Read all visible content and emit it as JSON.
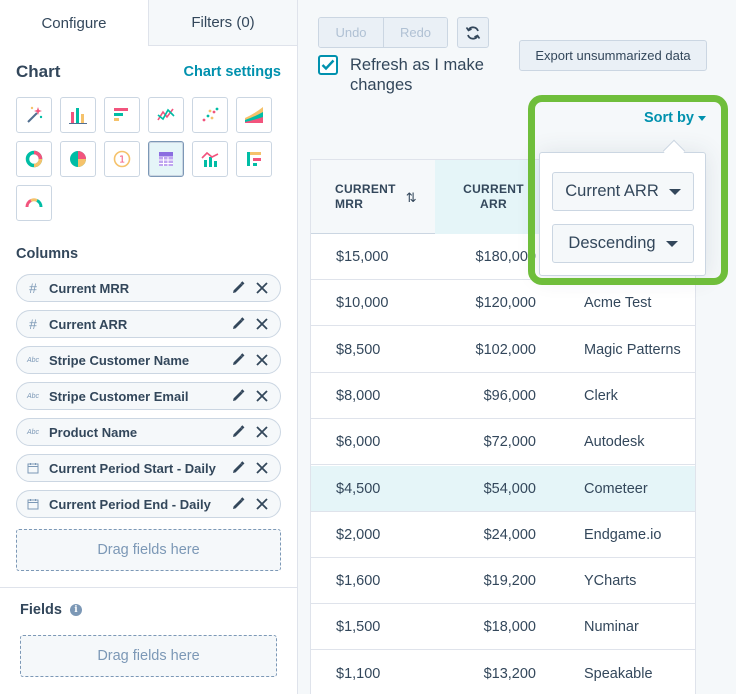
{
  "tabs": [
    {
      "label": "Configure",
      "active": true
    },
    {
      "label": "Filters (0)",
      "active": false
    }
  ],
  "chart": {
    "title": "Chart",
    "settings_label": "Chart settings",
    "types": [
      {
        "icon": "magic-wand-icon",
        "selected": false
      },
      {
        "icon": "bar-chart-icon",
        "selected": false
      },
      {
        "icon": "horizontal-bar-chart-icon",
        "selected": false
      },
      {
        "icon": "line-chart-icon",
        "selected": false
      },
      {
        "icon": "scatter-chart-icon",
        "selected": false
      },
      {
        "icon": "area-chart-icon",
        "selected": false
      },
      {
        "icon": "donut-chart-icon",
        "selected": false
      },
      {
        "icon": "pie-chart-icon",
        "selected": false
      },
      {
        "icon": "kpi-icon",
        "selected": false
      },
      {
        "icon": "table-icon",
        "selected": true
      },
      {
        "icon": "combo-chart-icon",
        "selected": false
      },
      {
        "icon": "pivot-table-icon",
        "selected": false
      },
      {
        "icon": "gauge-icon",
        "selected": false
      }
    ],
    "kpi_glyph": "1"
  },
  "columns": {
    "title": "Columns",
    "items": [
      {
        "type_glyph": "#",
        "type": "number",
        "name": "Current MRR"
      },
      {
        "type_glyph": "#",
        "type": "number",
        "name": "Current ARR"
      },
      {
        "type_glyph": "Abc",
        "type": "text",
        "name": "Stripe Customer Name"
      },
      {
        "type_glyph": "Abc",
        "type": "text",
        "name": "Stripe Customer Email"
      },
      {
        "type_glyph": "Abc",
        "type": "text",
        "name": "Product Name"
      },
      {
        "type_glyph": "",
        "type": "date",
        "name": "Current Period Start - Daily"
      },
      {
        "type_glyph": "",
        "type": "date",
        "name": "Current Period End - Daily"
      }
    ],
    "drop_label": "Drag fields here"
  },
  "fields": {
    "title": "Fields",
    "info_glyph": "i",
    "drop_label": "Drag fields here"
  },
  "toolbar": {
    "undo_label": "Undo",
    "redo_label": "Redo",
    "export_label": "Export unsummarized data",
    "refresh_checkbox_label": "Refresh as I make changes",
    "refresh_checked": true
  },
  "table": {
    "headers": [
      {
        "line1": "CURRENT",
        "line2": "MRR",
        "sort_glyph": "⇅"
      },
      {
        "line1": "CURRENT",
        "line2": "ARR"
      }
    ],
    "rows": [
      {
        "mrr": "$15,000",
        "arr": "$180,000",
        "name": ""
      },
      {
        "mrr": "$10,000",
        "arr": "$120,000",
        "name": "Acme Test"
      },
      {
        "mrr": "$8,500",
        "arr": "$102,000",
        "name": "Magic Patterns"
      },
      {
        "mrr": "$8,000",
        "arr": "$96,000",
        "name": "Clerk"
      },
      {
        "mrr": "$6,000",
        "arr": "$72,000",
        "name": "Autodesk"
      },
      {
        "mrr": "$4,500",
        "arr": "$54,000",
        "name": "Cometeer",
        "highlighted": true
      },
      {
        "mrr": "$2,000",
        "arr": "$24,000",
        "name": "Endgame.io"
      },
      {
        "mrr": "$1,600",
        "arr": "$19,200",
        "name": "YCharts"
      },
      {
        "mrr": "$1,500",
        "arr": "$18,000",
        "name": "Numinar"
      },
      {
        "mrr": "$1,100",
        "arr": "$13,200",
        "name": "Speakable"
      }
    ]
  },
  "sort": {
    "label": "Sort by",
    "field_value": "Current ARR",
    "direction_value": "Descending"
  },
  "colors": {
    "accent": "#0091ae",
    "highlight_outline": "#6fbe3b",
    "text": "#33475b",
    "selected_bg": "#e5f5f8"
  }
}
